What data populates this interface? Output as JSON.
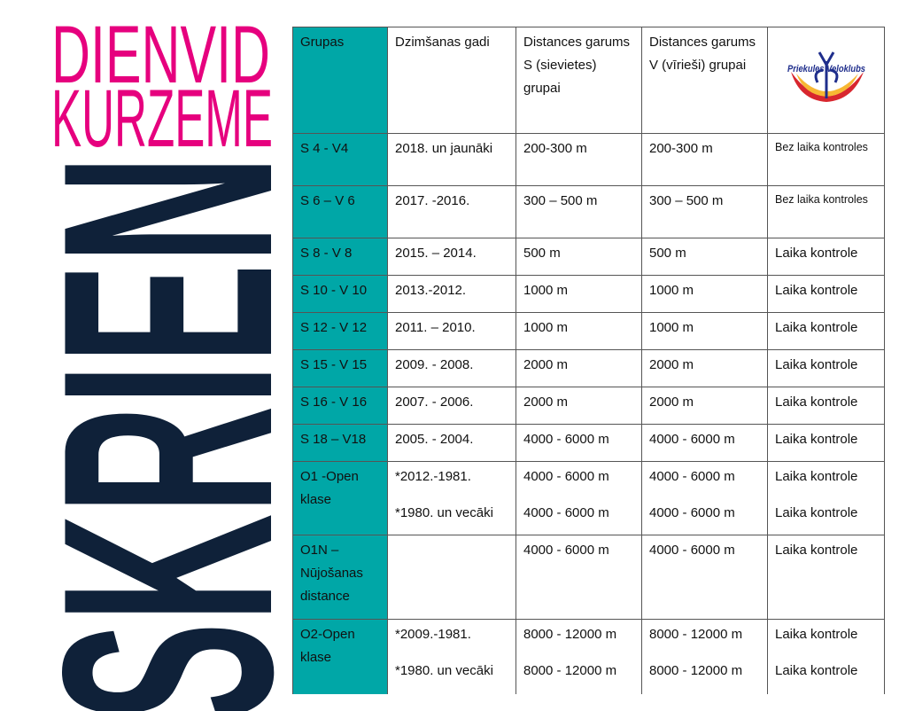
{
  "brand": {
    "line1": "DIENVID",
    "line2": "KURZEME",
    "vertical": "SKRIEN",
    "pink": "#e6007e",
    "navy": "#0f2139"
  },
  "logo": {
    "text": "Priekules Veloklubs"
  },
  "accent": "#00a7a7",
  "table": {
    "headers": [
      "Grupas",
      "Dzimšanas gadi",
      "Distances garums S (sievietes) grupai",
      "Distances garums V (vīrieši) grupai"
    ],
    "rows": [
      {
        "group": "S 4 - V4",
        "years": [
          "2018. un jaunāki"
        ],
        "s": [
          "200-300 m"
        ],
        "v": [
          "200-300 m"
        ],
        "note": [
          "Bez laika kontroles"
        ],
        "small": true
      },
      {
        "group": "S 6 – V 6",
        "years": [
          "2017. -2016."
        ],
        "s": [
          "300 – 500 m"
        ],
        "v": [
          "300 – 500 m"
        ],
        "note": [
          "Bez laika kontroles"
        ],
        "small": true
      },
      {
        "group": "S 8 - V 8",
        "years": [
          "2015. – 2014."
        ],
        "s": [
          "500 m"
        ],
        "v": [
          "500 m"
        ],
        "note": [
          "Laika kontrole"
        ]
      },
      {
        "group": "S 10 - V 10",
        "years": [
          "2013.-2012."
        ],
        "s": [
          "1000 m"
        ],
        "v": [
          "1000 m"
        ],
        "note": [
          "Laika kontrole"
        ]
      },
      {
        "group": "S 12 - V 12",
        "years": [
          "2011. – 2010."
        ],
        "s": [
          "1000 m"
        ],
        "v": [
          "1000 m"
        ],
        "note": [
          "Laika kontrole"
        ]
      },
      {
        "group": "S 15 - V 15",
        "years": [
          "2009. - 2008."
        ],
        "s": [
          "2000 m"
        ],
        "v": [
          "2000 m"
        ],
        "note": [
          "Laika kontrole"
        ]
      },
      {
        "group": "S 16 - V 16",
        "years": [
          "2007. - 2006."
        ],
        "s": [
          "2000 m"
        ],
        "v": [
          "2000 m"
        ],
        "note": [
          "Laika kontrole"
        ]
      },
      {
        "group": "S 18 – V18",
        "years": [
          "2005. - 2004."
        ],
        "s": [
          "4000 - 6000 m"
        ],
        "v": [
          "4000 - 6000 m"
        ],
        "note": [
          "Laika kontrole"
        ]
      },
      {
        "group": "O1 -Open klase",
        "years": [
          "*2012.-1981.",
          "*1980. un vecāki"
        ],
        "s": [
          "4000 - 6000 m",
          "4000 - 6000 m"
        ],
        "v": [
          "4000 - 6000 m",
          "4000 - 6000 m"
        ],
        "note": [
          "Laika kontrole",
          "Laika kontrole"
        ]
      },
      {
        "group": "O1N – Nūjošanas distance",
        "years": [],
        "s": [
          "4000 - 6000 m"
        ],
        "v": [
          "4000 - 6000 m"
        ],
        "note": [
          "Laika kontrole"
        ]
      },
      {
        "group": "O2-Open klase",
        "years": [
          "*2009.-1981.",
          "*1980. un vecāki"
        ],
        "s": [
          "8000 - 12000 m",
          "8000 - 12000 m"
        ],
        "v": [
          "8000 - 12000 m",
          "8000 - 12000 m"
        ],
        "note": [
          "Laika kontrole",
          "Laika kontrole"
        ]
      }
    ]
  }
}
